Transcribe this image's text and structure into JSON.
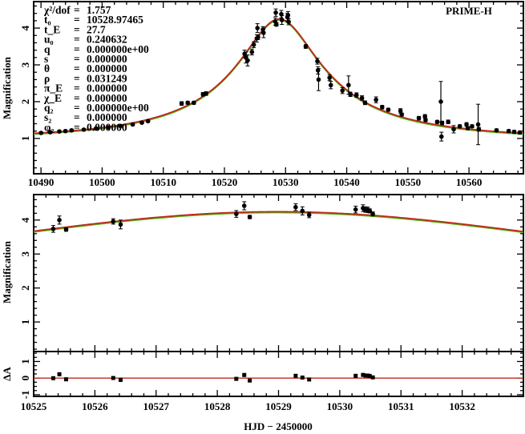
{
  "chart_data": [
    {
      "type": "scatter",
      "panel": "full-light-curve",
      "title": "PRIME-H",
      "ylabel": "Magnification",
      "xlim": [
        10488.8,
        10568.9
      ],
      "ylim": [
        0.04,
        4.72
      ],
      "xticks": [
        10490,
        10500,
        10510,
        10520,
        10530,
        10540,
        10550,
        10560
      ],
      "yticks": [
        1,
        2,
        3,
        4
      ],
      "model": {
        "t0": 10528.97465,
        "tE": 27.7,
        "u0": 0.240632,
        "color": "#c0281c",
        "underlay_color": "#4cbb17"
      },
      "parameters": [
        {
          "label": "χ²/dof",
          "value": "1.757"
        },
        {
          "label": "t₀",
          "value": "10528.97465"
        },
        {
          "label": "t_E",
          "value": "27.7"
        },
        {
          "label": "u₀",
          "value": "0.240632"
        },
        {
          "label": "q",
          "value": "0.000000e+00"
        },
        {
          "label": "s",
          "value": "0.000000"
        },
        {
          "label": "θ",
          "value": "0.000000"
        },
        {
          "label": "ρ",
          "value": "0.031249"
        },
        {
          "label": "π_E",
          "value": "0.000000"
        },
        {
          "label": "χ_E",
          "value": "0.000000"
        },
        {
          "label": "q₂",
          "value": "0.000000e+00"
        },
        {
          "label": "s₂",
          "value": "0.000000"
        },
        {
          "label": "φ₂",
          "value": "0.000000"
        }
      ],
      "points": [
        [
          10490,
          1.15,
          0.03
        ],
        [
          10491.5,
          1.17,
          0.03
        ],
        [
          10493,
          1.19,
          0.03
        ],
        [
          10494,
          1.2,
          0.03
        ],
        [
          10495,
          1.22,
          0.03
        ],
        [
          10497,
          1.24,
          0.03
        ],
        [
          10499,
          1.27,
          0.03
        ],
        [
          10501,
          1.3,
          0.03
        ],
        [
          10503,
          1.34,
          0.03
        ],
        [
          10505,
          1.38,
          0.03
        ],
        [
          10506.5,
          1.43,
          0.03
        ],
        [
          10507.5,
          1.47,
          0.03
        ],
        [
          10513,
          1.95,
          0.05
        ],
        [
          10514,
          1.97,
          0.04
        ],
        [
          10515,
          1.97,
          0.04
        ],
        [
          10516.5,
          2.2,
          0.05
        ],
        [
          10517,
          2.22,
          0.05
        ],
        [
          10523.3,
          3.3,
          0.1
        ],
        [
          10523.5,
          3.2,
          0.15
        ],
        [
          10523.8,
          3.12,
          0.15
        ],
        [
          10524.5,
          3.35,
          0.08
        ],
        [
          10524.8,
          3.55,
          0.08
        ],
        [
          10525.3,
          3.72,
          0.1
        ],
        [
          10525.4,
          4.0,
          0.12
        ],
        [
          10525.5,
          3.75,
          0.06
        ],
        [
          10526.3,
          3.96,
          0.08
        ],
        [
          10526.4,
          3.87,
          0.13
        ],
        [
          10528.3,
          4.18,
          0.1
        ],
        [
          10528.4,
          4.42,
          0.1
        ],
        [
          10528.5,
          4.1,
          0.05
        ],
        [
          10529.3,
          4.38,
          0.1
        ],
        [
          10529.4,
          4.22,
          0.12
        ],
        [
          10530.3,
          4.3,
          0.1
        ],
        [
          10530.4,
          4.35,
          0.1
        ],
        [
          10530.5,
          4.17,
          0.08
        ],
        [
          10533.3,
          3.5,
          0.05
        ],
        [
          10535.2,
          3.1,
          0.08
        ],
        [
          10535.3,
          2.85,
          0.1
        ],
        [
          10535.4,
          2.6,
          0.3
        ],
        [
          10537.2,
          2.65,
          0.08
        ],
        [
          10537.4,
          2.45,
          0.1
        ],
        [
          10539.3,
          2.3,
          0.08
        ],
        [
          10540.3,
          2.45,
          0.25
        ],
        [
          10540.6,
          2.2,
          0.06
        ],
        [
          10541.6,
          2.18,
          0.06
        ],
        [
          10542.5,
          2.1,
          0.06
        ],
        [
          10543,
          1.97,
          0.05
        ],
        [
          10544.8,
          2.05,
          0.08
        ],
        [
          10545.8,
          1.85,
          0.05
        ],
        [
          10546.8,
          1.78,
          0.04
        ],
        [
          10548.8,
          1.75,
          0.06
        ],
        [
          10549,
          1.65,
          0.04
        ],
        [
          10551.8,
          1.55,
          0.05
        ],
        [
          10552.8,
          1.6,
          0.05
        ],
        [
          10552.9,
          1.5,
          0.04
        ],
        [
          10554.8,
          1.45,
          0.04
        ],
        [
          10555.4,
          2.0,
          0.55
        ],
        [
          10555.5,
          1.05,
          0.12
        ],
        [
          10555.6,
          1.42,
          0.05
        ],
        [
          10556.6,
          1.45,
          0.05
        ],
        [
          10557.5,
          1.25,
          0.1
        ],
        [
          10558.5,
          1.33,
          0.04
        ],
        [
          10559.6,
          1.38,
          0.05
        ],
        [
          10559.8,
          1.28,
          0.04
        ],
        [
          10560.5,
          1.33,
          0.04
        ],
        [
          10561.5,
          1.38,
          0.55
        ],
        [
          10561.6,
          1.25,
          0.05
        ],
        [
          10564.5,
          1.22,
          0.04
        ],
        [
          10566.5,
          1.2,
          0.04
        ],
        [
          10567.4,
          1.18,
          0.04
        ],
        [
          10568.3,
          1.16,
          0.04
        ]
      ]
    },
    {
      "type": "scatter",
      "panel": "peak-zoom",
      "ylabel": "Magnification",
      "xlim": [
        10525,
        10533
      ],
      "ylim": [
        0.13,
        4.75
      ],
      "xticks": [
        10525,
        10526,
        10527,
        10528,
        10529,
        10530,
        10531,
        10532
      ],
      "yticks": [
        1,
        2,
        3,
        4
      ],
      "points": [
        [
          10525.32,
          3.74,
          0.1
        ],
        [
          10525.42,
          4.0,
          0.12
        ],
        [
          10525.53,
          3.72,
          0.05
        ],
        [
          10526.3,
          3.96,
          0.08
        ],
        [
          10526.42,
          3.87,
          0.13
        ],
        [
          10528.31,
          4.18,
          0.1
        ],
        [
          10528.44,
          4.42,
          0.12
        ],
        [
          10528.53,
          4.09,
          0.05
        ],
        [
          10529.28,
          4.38,
          0.1
        ],
        [
          10529.39,
          4.27,
          0.12
        ],
        [
          10529.5,
          4.15,
          0.08
        ],
        [
          10530.26,
          4.31,
          0.1
        ],
        [
          10530.38,
          4.35,
          0.1
        ],
        [
          10530.42,
          4.31,
          0.08
        ],
        [
          10530.46,
          4.3,
          0.08
        ],
        [
          10530.49,
          4.27,
          0.06
        ],
        [
          10530.54,
          4.18,
          0.06
        ]
      ]
    },
    {
      "type": "scatter",
      "panel": "residuals",
      "ylabel": "ΔA",
      "xlabel": "HJD − 2450000",
      "xlim": [
        10525,
        10533
      ],
      "ylim": [
        -1.1,
        1.6
      ],
      "yticks": [
        -1,
        0,
        1
      ]
    }
  ]
}
